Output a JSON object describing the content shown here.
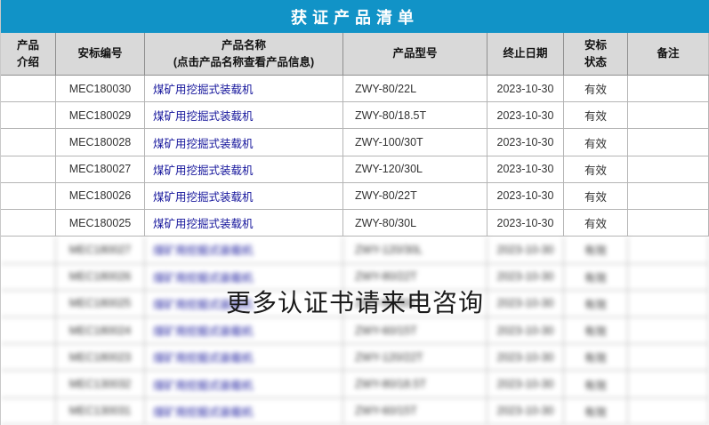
{
  "title": "获证产品清单",
  "overlay": {
    "text": "更多认证书请来电咨询"
  },
  "colors": {
    "title_bg": "#1193C7",
    "title_text": "#FFFFFF",
    "header_bg": "#D9D9D9",
    "grid_border": "#B5B5B5",
    "link_text": "#14149B",
    "body_text": "#333333"
  },
  "columns": [
    {
      "lines": [
        "产品",
        "介绍"
      ]
    },
    {
      "lines": [
        "安标编号"
      ]
    },
    {
      "lines": [
        "产品名称",
        "(点击产品名称查看产品信息)"
      ]
    },
    {
      "lines": [
        "产品型号"
      ]
    },
    {
      "lines": [
        "终止日期"
      ]
    },
    {
      "lines": [
        "安标",
        "状态"
      ]
    },
    {
      "lines": [
        "备注"
      ]
    }
  ],
  "table": {
    "rows": [
      {
        "intro": "",
        "cert_no": "MEC180030",
        "name": "煤矿用挖掘式装载机",
        "model": "ZWY-80/22L",
        "end_date": "2023-10-30",
        "status": "有效",
        "remark": "",
        "blurred": false
      },
      {
        "intro": "",
        "cert_no": "MEC180029",
        "name": "煤矿用挖掘式装载机",
        "model": "ZWY-80/18.5T",
        "end_date": "2023-10-30",
        "status": "有效",
        "remark": "",
        "blurred": false
      },
      {
        "intro": "",
        "cert_no": "MEC180028",
        "name": "煤矿用挖掘式装载机",
        "model": "ZWY-100/30T",
        "end_date": "2023-10-30",
        "status": "有效",
        "remark": "",
        "blurred": false
      },
      {
        "intro": "",
        "cert_no": "MEC180027",
        "name": "煤矿用挖掘式装载机",
        "model": "ZWY-120/30L",
        "end_date": "2023-10-30",
        "status": "有效",
        "remark": "",
        "blurred": false
      },
      {
        "intro": "",
        "cert_no": "MEC180026",
        "name": "煤矿用挖掘式装载机",
        "model": "ZWY-80/22T",
        "end_date": "2023-10-30",
        "status": "有效",
        "remark": "",
        "blurred": false
      },
      {
        "intro": "",
        "cert_no": "MEC180025",
        "name": "煤矿用挖掘式装载机",
        "model": "ZWY-80/30L",
        "end_date": "2023-10-30",
        "status": "有效",
        "remark": "",
        "blurred": false
      },
      {
        "intro": "",
        "cert_no": "MEC180027",
        "name": "煤矿用挖掘式装载机",
        "model": "ZWY-120/30L",
        "end_date": "2023-10-30",
        "status": "有效",
        "remark": "",
        "blurred": true
      },
      {
        "intro": "",
        "cert_no": "MEC180026",
        "name": "煤矿用挖掘式装载机",
        "model": "ZWY-80/22T",
        "end_date": "2023-10-30",
        "status": "有效",
        "remark": "",
        "blurred": true
      },
      {
        "intro": "",
        "cert_no": "MEC180025",
        "name": "煤矿用挖掘式装载机",
        "model": "ZWY-80/30L",
        "end_date": "2023-10-30",
        "status": "有效",
        "remark": "",
        "blurred": true
      },
      {
        "intro": "",
        "cert_no": "MEC180024",
        "name": "煤矿用挖掘式装载机",
        "model": "ZWY-60/15T",
        "end_date": "2023-10-30",
        "status": "有效",
        "remark": "",
        "blurred": true
      },
      {
        "intro": "",
        "cert_no": "MEC180023",
        "name": "煤矿用挖掘式装载机",
        "model": "ZWY-120/22T",
        "end_date": "2023-10-30",
        "status": "有效",
        "remark": "",
        "blurred": true
      },
      {
        "intro": "",
        "cert_no": "MEC130032",
        "name": "煤矿用挖掘式装载机",
        "model": "ZWY-80/18.5T",
        "end_date": "2023-10-30",
        "status": "有效",
        "remark": "",
        "blurred": true
      },
      {
        "intro": "",
        "cert_no": "MEC130031",
        "name": "煤矿用挖掘式装载机",
        "model": "ZWY-60/15T",
        "end_date": "2023-10-30",
        "status": "有效",
        "remark": "",
        "blurred": true
      }
    ]
  }
}
